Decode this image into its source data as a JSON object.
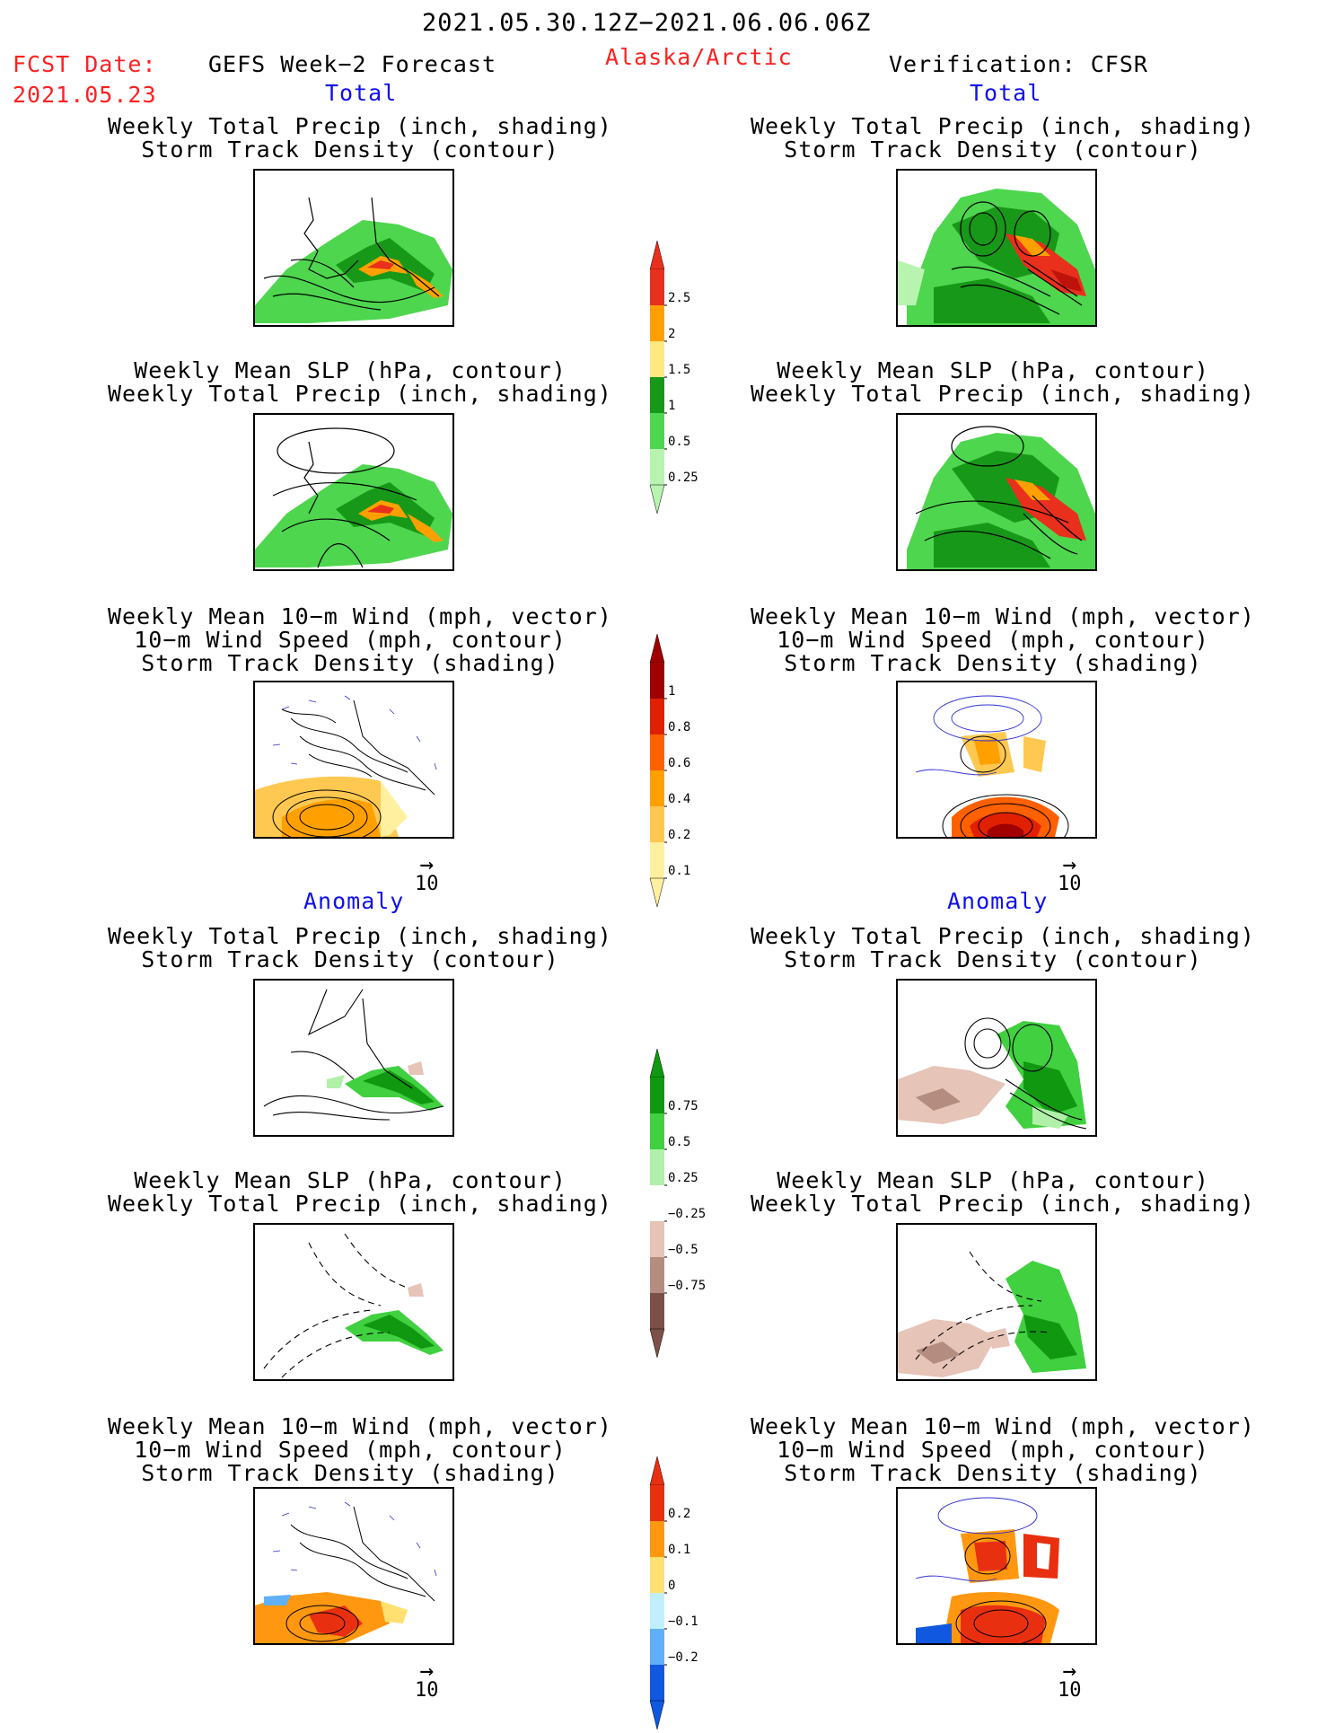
{
  "header": {
    "period": "2021.05.30.12Z−2021.06.06.06Z",
    "fcst_label": "FCST Date:",
    "fcst_date": "2021.05.23",
    "left_title": "GEFS Week−2 Forecast",
    "region": "Alaska/Arctic",
    "right_title": "Verification: CFSR"
  },
  "sections": {
    "total": "Total",
    "anomaly": "Anomaly"
  },
  "panel_titles": {
    "precip_storm": "Weekly Total Precip (inch, shading)\nStorm Track Density (contour)",
    "slp_precip": "Weekly Mean SLP (hPa, contour)\nWeekly Total Precip (inch, shading)",
    "wind": "Weekly Mean 10−m Wind (mph, vector)\n10−m Wind Speed (mph, contour)\nStorm Track Density (shading)"
  },
  "vector_ref": {
    "arrow": "→",
    "value": "10"
  },
  "colorbars": [
    {
      "id": "precip-total",
      "labels": [
        "2.5",
        "2",
        "1.5",
        "1",
        "0.5",
        "0.25"
      ],
      "colors": [
        "#e8301c",
        "#ffa000",
        "#ffe880",
        "#189818",
        "#4ed64e",
        "#b8f4b0"
      ]
    },
    {
      "id": "storm-total",
      "labels": [
        "1",
        "0.8",
        "0.6",
        "0.4",
        "0.2",
        "0.1"
      ],
      "colors": [
        "#a00000",
        "#e02000",
        "#ff6000",
        "#ffa000",
        "#ffc850",
        "#fff0a0"
      ]
    },
    {
      "id": "precip-anom",
      "labels": [
        "0.75",
        "0.5",
        "0.25",
        "−0.25",
        "−0.5",
        "−0.75"
      ],
      "colors": [
        "#109810",
        "#40d040",
        "#b0f0a8",
        "#ffffff",
        "#e6c4b8",
        "#b48c80",
        "#7c5048"
      ]
    },
    {
      "id": "storm-anom",
      "labels": [
        "0.2",
        "0.1",
        "0",
        "−0.1",
        "−0.2"
      ],
      "colors": [
        "#e83010",
        "#ff9810",
        "#ffe070",
        "#c0f0ff",
        "#60b0f8",
        "#1058e0"
      ]
    }
  ]
}
